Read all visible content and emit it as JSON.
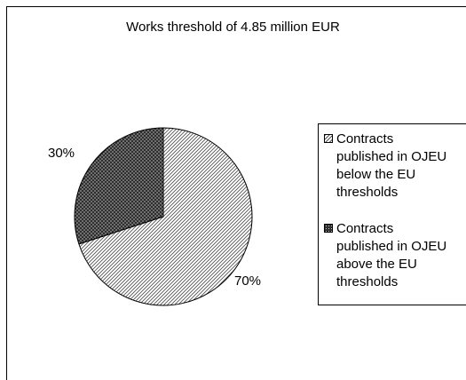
{
  "chart_data": {
    "type": "pie",
    "title": "Works threshold of 4.85 million EUR",
    "slices": [
      {
        "name": "Contracts published in OJEU below the EU thresholds",
        "value": 70,
        "label": "70%",
        "pattern": "diagonal-hatch",
        "color": "#7f7f7f"
      },
      {
        "name": "Contracts published in OJEU above the EU thresholds",
        "value": 30,
        "label": "30%",
        "pattern": "dark-dots",
        "color": "#333333"
      }
    ],
    "legend_position": "right"
  },
  "legend": {
    "items": [
      {
        "lines": [
          "Contracts",
          "published in OJEU",
          "below the EU",
          "thresholds"
        ]
      },
      {
        "lines": [
          "Contracts",
          "published in OJEU",
          "above the EU",
          "thresholds"
        ]
      }
    ]
  }
}
